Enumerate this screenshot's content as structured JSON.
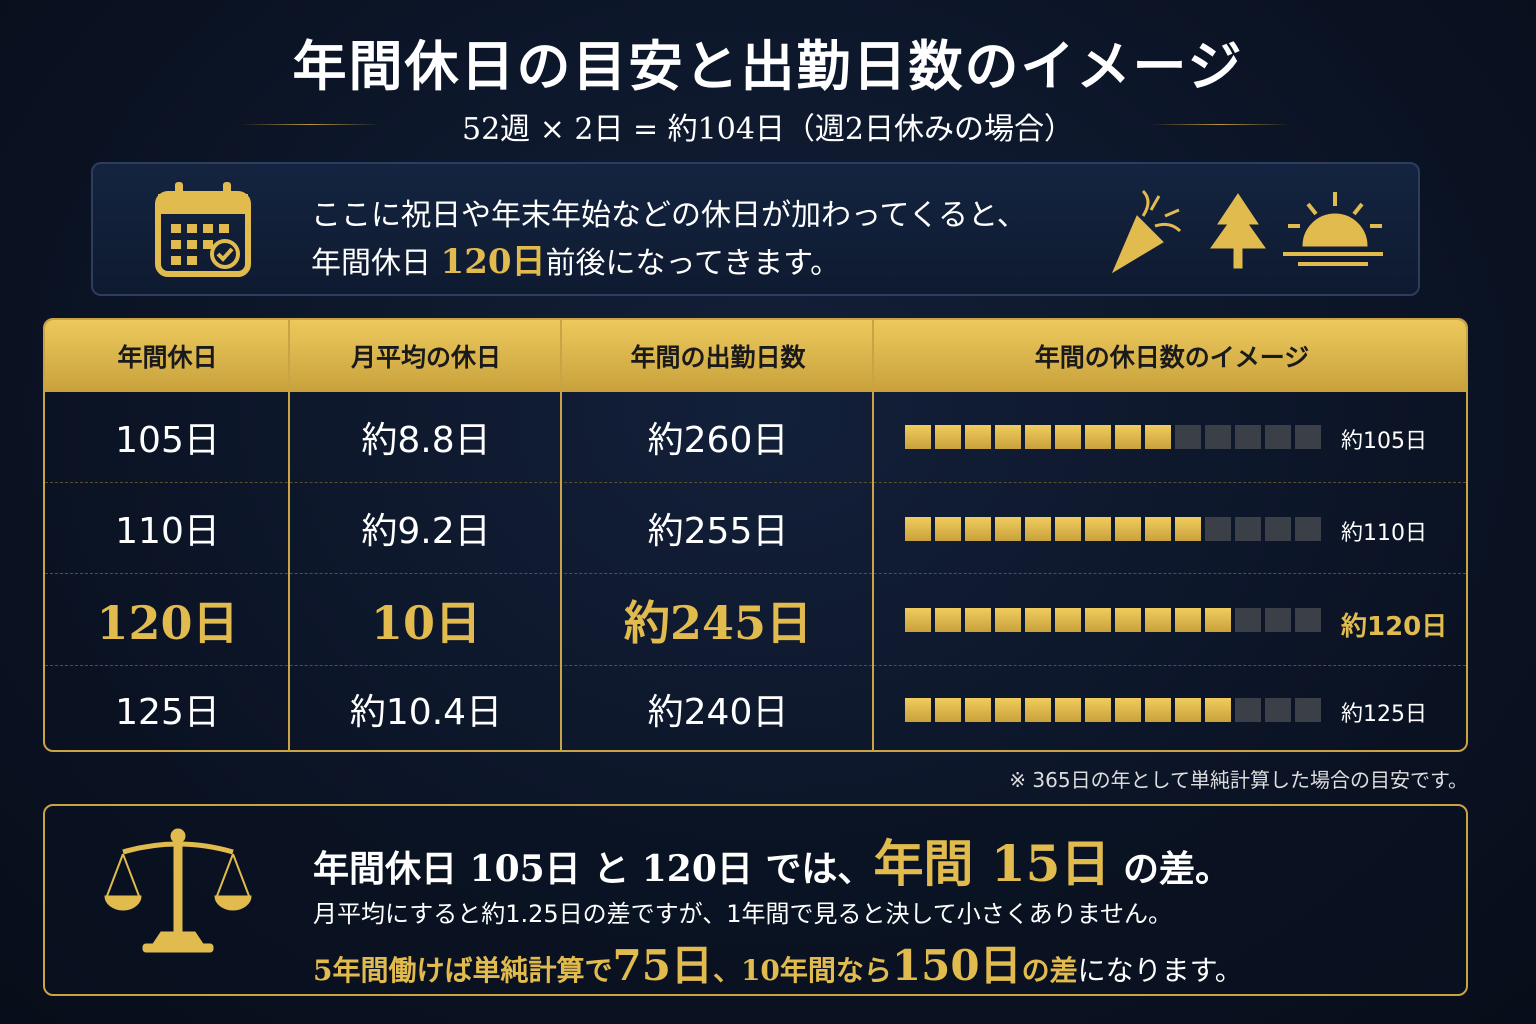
{
  "header": {
    "title": "年間休日の目安と出勤日数のイメージ",
    "subtitle": "52週 × 2日 = 約104日（週2日休みの場合）"
  },
  "info": {
    "line1": "ここに祝日や年末年始などの休日が加わってくると、",
    "line2_pre": "年間休日 ",
    "line2_em": "120日",
    "line2_post": "前後になってきます。"
  },
  "table": {
    "headers": [
      "年間休日",
      "月平均の休日",
      "年間の出勤日数",
      "年間の休日数のイメージ"
    ],
    "square_count": 14,
    "rows": [
      {
        "holidays": "105日",
        "monthly": "約8.8日",
        "workdays": "約260日",
        "image_label": "約105日",
        "filled": 9,
        "highlight": false
      },
      {
        "holidays": "110日",
        "monthly": "約9.2日",
        "workdays": "約255日",
        "image_label": "約110日",
        "filled": 10,
        "highlight": false
      },
      {
        "holidays": "120日",
        "monthly": "10日",
        "workdays": "約245日",
        "image_label": "約120日",
        "filled": 11,
        "highlight": true
      },
      {
        "holidays": "125日",
        "monthly": "約10.4日",
        "workdays": "約240日",
        "image_label": "約125日",
        "filled": 11,
        "highlight": false
      }
    ],
    "note": "※ 365日の年として単純計算した場合の目安です。"
  },
  "summary": {
    "line1_pre": "年間休日 105日 と 120日 では、",
    "line1_em": "年間 15日",
    "line1_post": " の差。",
    "line2": "月平均にすると約1.25日の差ですが、1年間で見ると決して小さくありません。",
    "line3_a": "5年間働けば単純計算で",
    "line3_b": "75日",
    "line3_c": "、10年間なら",
    "line3_d": "150日",
    "line3_e": "の差",
    "line3_f": "になります。"
  }
}
